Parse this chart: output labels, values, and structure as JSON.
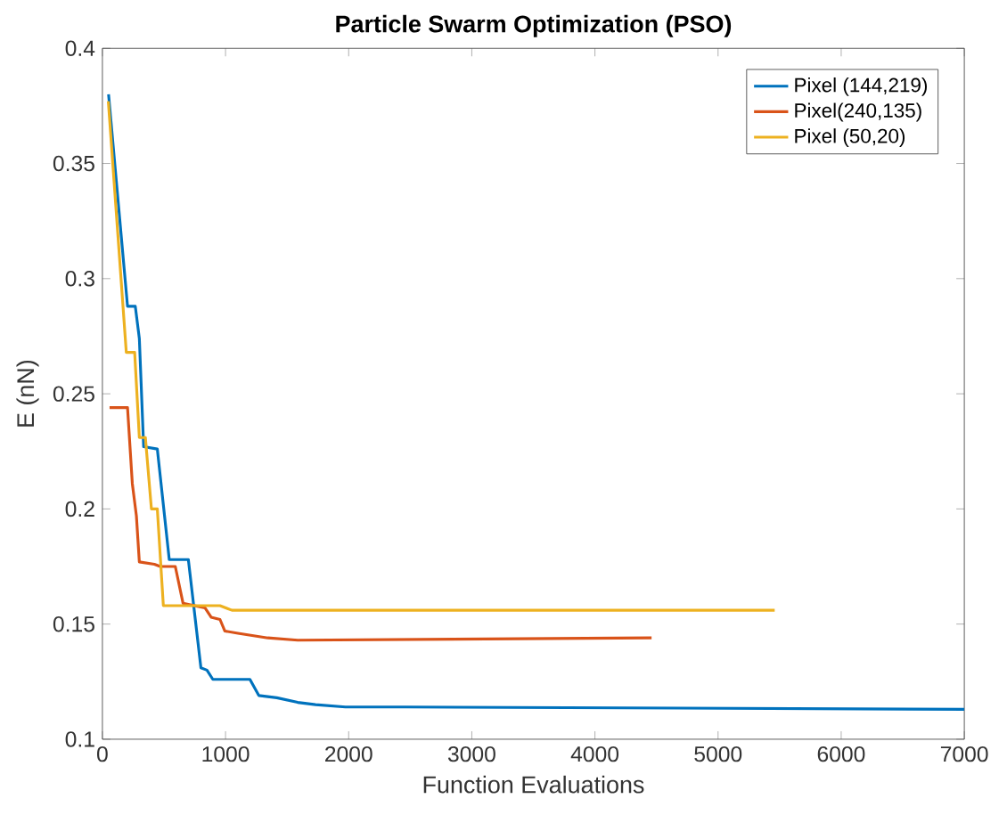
{
  "chart_data": {
    "type": "line",
    "title": "Particle Swarm Optimization (PSO)",
    "xlabel": "Function Evaluations",
    "ylabel": "E (nN)",
    "xlim": [
      0,
      7000
    ],
    "ylim": [
      0.1,
      0.4
    ],
    "xticks": [
      0,
      1000,
      2000,
      3000,
      4000,
      5000,
      6000,
      7000
    ],
    "yticks": [
      0.1,
      0.15,
      0.2,
      0.25,
      0.3,
      0.35,
      0.4
    ],
    "grid": false,
    "legend": "top right",
    "line_style": "solid",
    "marker": "none",
    "series": [
      {
        "name": "Pixel (144,219)",
        "color": "#0072bd",
        "x": [
          50,
          204,
          267,
          300,
          335,
          446,
          543,
          698,
          800,
          849,
          897,
          1198,
          1270,
          1416,
          1586,
          1731,
          1974,
          2459,
          7000
        ],
        "values": [
          0.38,
          0.288,
          0.288,
          0.274,
          0.227,
          0.226,
          0.178,
          0.178,
          0.131,
          0.13,
          0.126,
          0.126,
          0.119,
          0.118,
          0.116,
          0.115,
          0.114,
          0.114,
          0.113
        ]
      },
      {
        "name": "Pixel(240,135)",
        "color": "#d95319",
        "x": [
          58,
          204,
          243,
          276,
          300,
          422,
          470,
          592,
          655,
          834,
          883,
          955,
          994,
          1101,
          1343,
          1586,
          4460
        ],
        "values": [
          0.244,
          0.244,
          0.211,
          0.197,
          0.177,
          0.176,
          0.175,
          0.175,
          0.159,
          0.157,
          0.153,
          0.152,
          0.147,
          0.146,
          0.144,
          0.143,
          0.144
        ]
      },
      {
        "name": "Pixel (50,20)",
        "color": "#edb120",
        "x": [
          48,
          194,
          262,
          300,
          349,
          398,
          446,
          495,
          955,
          1052,
          5460
        ],
        "values": [
          0.377,
          0.268,
          0.268,
          0.231,
          0.231,
          0.2,
          0.2,
          0.158,
          0.158,
          0.156,
          0.156
        ]
      }
    ]
  }
}
